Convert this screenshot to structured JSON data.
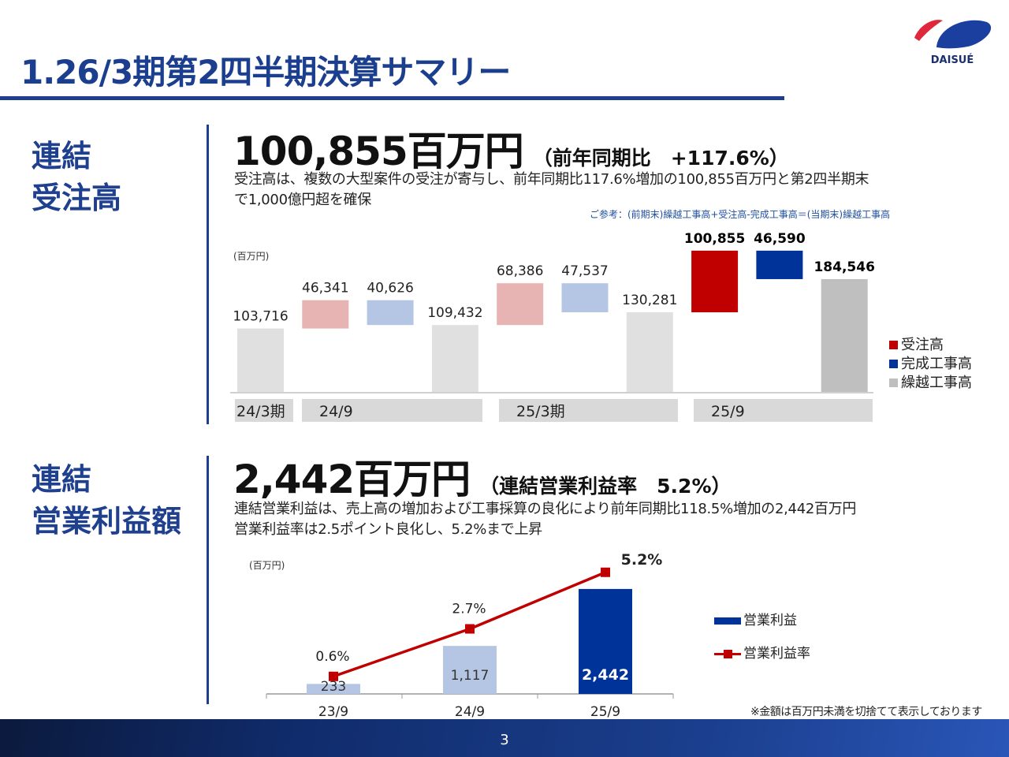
{
  "header": {
    "title": "1.26/3期第2四半期決算サマリー",
    "logo_text": "DAISUÉ"
  },
  "section1": {
    "label": "連結\n受注高",
    "headline_value": "100,855百万円",
    "headline_sub": "（前年同期比　+117.6%）",
    "description": "受注高は、複数の大型案件の受注が寄与し、前年同期比117.6%増加の100,855百万円と第2四半期末\nで1,000億円超を確保",
    "reference": "ご参考：(前期末)繰越工事高+受注高-完成工事高＝(当期末)繰越工事高"
  },
  "section2": {
    "label": "連結\n営業利益額",
    "headline_value": "2,442百万円",
    "headline_sub": "（連結営業利益率　5.2%）",
    "description": "連結営業利益は、売上高の増加および工事採算の良化により前年同期比118.5%増加の2,442百万円\n営業利益率は2.5ポイント良化し、5.2%まで上昇"
  },
  "chart_data": [
    {
      "type": "bar",
      "subtype": "waterfall",
      "unit_label": "(百万円)",
      "periods": [
        "24/3期",
        "24/9",
        "25/3期",
        "25/9"
      ],
      "bars": [
        {
          "period": "24/3期",
          "kind": "backlog",
          "value": 103716,
          "label": "103,716",
          "emphasis": false
        },
        {
          "period": "24/9",
          "kind": "orders",
          "value": 46341,
          "label": "46,341",
          "emphasis": false
        },
        {
          "period": "24/9",
          "kind": "completed",
          "value": -40626,
          "label": "40,626",
          "emphasis": false
        },
        {
          "period": "24/9",
          "kind": "backlog",
          "value": 109432,
          "label": "109,432",
          "emphasis": false
        },
        {
          "period": "25/3期",
          "kind": "orders",
          "value": 68386,
          "label": "68,386",
          "emphasis": false
        },
        {
          "period": "25/3期",
          "kind": "completed",
          "value": -47537,
          "label": "47,537",
          "emphasis": false
        },
        {
          "period": "25/3期",
          "kind": "backlog",
          "value": 130281,
          "label": "130,281",
          "emphasis": false
        },
        {
          "period": "25/9",
          "kind": "orders",
          "value": 100855,
          "label": "100,855",
          "emphasis": true
        },
        {
          "period": "25/9",
          "kind": "completed",
          "value": -46590,
          "label": "46,590",
          "emphasis": true
        },
        {
          "period": "25/9",
          "kind": "backlog",
          "value": 184546,
          "label": "184,546",
          "emphasis": true
        }
      ],
      "legend": [
        {
          "key": "orders",
          "name": "受注高",
          "color": "#c00000"
        },
        {
          "key": "completed",
          "name": "完成工事高",
          "color": "#003399"
        },
        {
          "key": "backlog",
          "name": "繰越工事高",
          "color": "#bfbfbf"
        }
      ],
      "pale_colors": {
        "orders": "#e8b3b3",
        "completed": "#b4c6e4",
        "backlog": "#e0e0e0"
      },
      "legend_position": "right"
    },
    {
      "type": "bar+line",
      "unit_label": "(百万円)",
      "categories": [
        "23/9",
        "24/9",
        "25/9"
      ],
      "series": [
        {
          "name": "営業利益",
          "type": "bar",
          "values": [
            233,
            1117,
            2442
          ],
          "labels": [
            "233",
            "1,117",
            "2,442"
          ],
          "colors": [
            "#b4c6e4",
            "#b4c6e4",
            "#003399"
          ]
        },
        {
          "name": "営業利益率",
          "type": "line",
          "values": [
            0.6,
            2.7,
            5.2
          ],
          "labels": [
            "0.6%",
            "2.7%",
            "5.2%"
          ],
          "color": "#c00000"
        }
      ],
      "legend_position": "right"
    }
  ],
  "footer": {
    "page_number": "3",
    "note": "※金額は百万円未満を切捨てて表示しております"
  }
}
